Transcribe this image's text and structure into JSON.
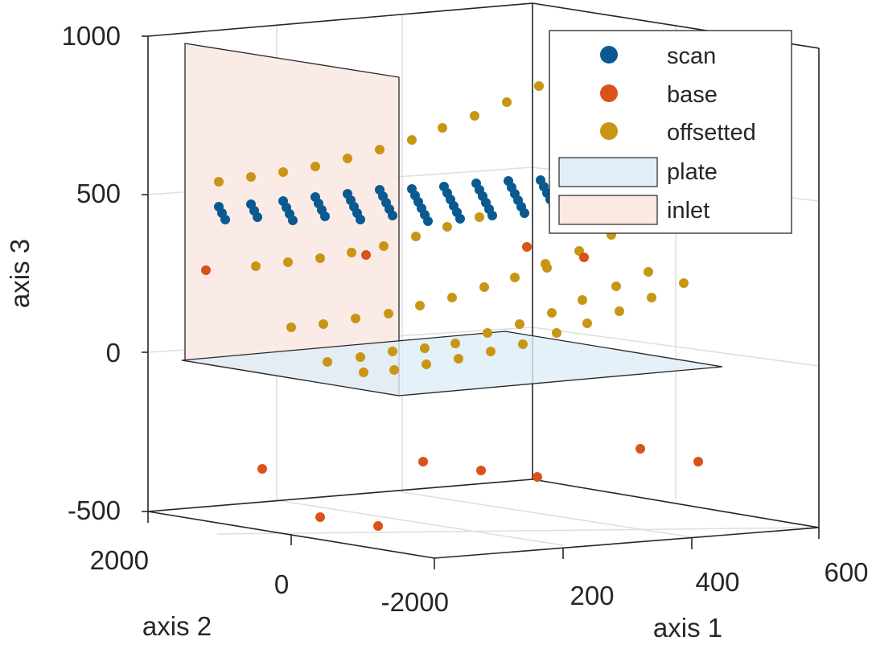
{
  "chart_data": {
    "type": "scatter",
    "subtype": "3d-scatter-with-planes",
    "x_axis": {
      "label": "axis 1",
      "ticks": [
        "200",
        "400",
        "600"
      ]
    },
    "y_axis": {
      "label": "axis 2",
      "ticks": [
        "2000",
        "0",
        "-2000"
      ]
    },
    "z_axis": {
      "label": "axis 3",
      "ticks": [
        "1000",
        "500",
        "0",
        "-500"
      ],
      "range": [
        -500,
        1000
      ]
    },
    "grid": true,
    "legend_position": "top-right",
    "series": [
      {
        "name": "scan",
        "kind": "points",
        "color": "#0a5a91",
        "points_z_approx": [
          520,
          510,
          500,
          490,
          480,
          470,
          460
        ]
      },
      {
        "name": "base",
        "kind": "points",
        "color": "#d95319",
        "points_z_approx": [
          300,
          310,
          280,
          -360,
          -380,
          -420,
          -480
        ]
      },
      {
        "name": "offsetted",
        "kind": "points",
        "color": "#c89614",
        "points_z_approx": [
          860,
          800,
          720,
          620,
          540,
          460,
          380,
          280,
          180,
          80,
          0
        ]
      },
      {
        "name": "plate",
        "kind": "surface",
        "color": "#dfeef8",
        "z": 0
      },
      {
        "name": "inlet",
        "kind": "surface",
        "color": "#fbe9e3"
      }
    ]
  }
}
